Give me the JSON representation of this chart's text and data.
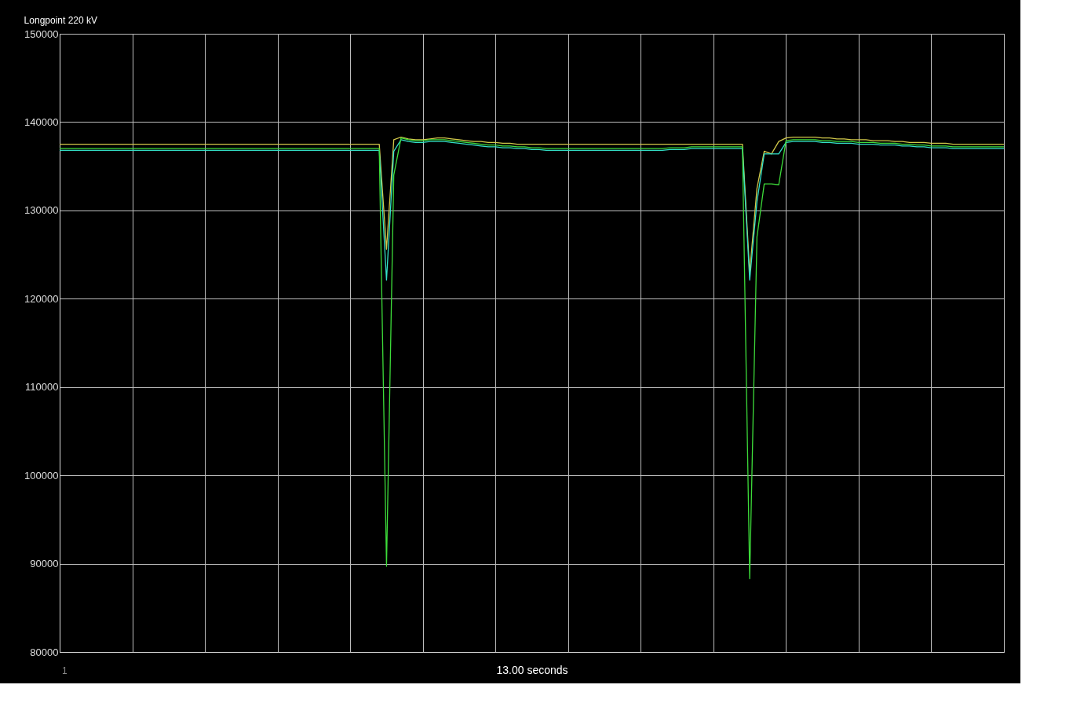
{
  "chart_data": {
    "type": "line",
    "title": "Longpoint 220 kV",
    "xlabel": "13.00 seconds",
    "annotations": [
      "1"
    ],
    "categories": [
      null,
      null,
      null,
      null,
      null,
      null,
      null,
      null,
      null,
      null,
      null,
      null,
      null,
      null,
      null,
      null,
      null,
      null,
      null,
      null,
      null,
      null,
      null,
      null,
      null,
      null,
      null,
      null,
      null,
      null,
      null,
      null,
      null,
      null,
      null,
      null,
      null,
      null,
      null,
      null,
      null,
      null,
      null,
      null,
      null,
      null,
      null,
      null,
      null,
      null,
      null,
      null,
      null,
      null,
      null,
      null,
      null,
      null,
      null,
      null,
      null,
      null,
      null,
      null,
      null,
      null,
      null,
      null,
      null,
      null,
      null,
      null,
      null,
      null,
      null,
      null,
      null,
      null,
      null,
      null,
      null,
      null,
      null,
      null,
      null,
      null,
      null,
      null,
      null,
      null,
      null,
      null,
      null,
      null,
      null,
      null,
      null,
      null,
      null,
      null,
      null,
      null,
      null,
      null,
      null,
      null,
      null,
      null,
      null,
      null,
      null,
      null,
      null,
      null,
      null,
      null,
      null,
      null,
      null,
      null,
      null,
      null,
      null,
      null,
      null,
      null,
      null,
      null,
      null,
      null,
      null
    ],
    "ylim": [
      80000,
      150000
    ],
    "yticks": [
      80000,
      90000,
      100000,
      110000,
      120000,
      130000,
      140000,
      150000
    ],
    "grid": true,
    "line_style": "solid",
    "series": [
      {
        "color": "#d2c94a",
        "values": [
          137500,
          137500,
          137500,
          137500,
          137500,
          137500,
          137500,
          137500,
          137500,
          137500,
          137500,
          137500,
          137500,
          137500,
          137500,
          137500,
          137500,
          137500,
          137500,
          137500,
          137500,
          137500,
          137500,
          137500,
          137500,
          137500,
          137500,
          137500,
          137500,
          137500,
          137500,
          137500,
          137500,
          137500,
          137500,
          137500,
          137500,
          137500,
          137500,
          137500,
          137500,
          137500,
          137500,
          137500,
          137500,
          125600,
          138000,
          138300,
          138100,
          138000,
          138000,
          138100,
          138200,
          138200,
          138100,
          138000,
          137900,
          137800,
          137800,
          137700,
          137700,
          137600,
          137600,
          137500,
          137500,
          137500,
          137500,
          137500,
          137500,
          137500,
          137500,
          137500,
          137500,
          137500,
          137500,
          137500,
          137500,
          137500,
          137500,
          137500,
          137500,
          137500,
          137500,
          137500,
          137500,
          137500,
          137500,
          137500,
          137500,
          137500,
          137500,
          137500,
          137500,
          137500,
          137500,
          123000,
          132500,
          136700,
          136400,
          137800,
          138200,
          138300,
          138300,
          138300,
          138300,
          138200,
          138200,
          138100,
          138100,
          138000,
          138000,
          138000,
          137900,
          137900,
          137900,
          137800,
          137800,
          137700,
          137700,
          137700,
          137600,
          137600,
          137600,
          137500,
          137500,
          137500,
          137500,
          137500,
          137500,
          137500,
          137500
        ]
      },
      {
        "color": "#33e0c8",
        "values": [
          136800,
          136800,
          136800,
          136800,
          136800,
          136800,
          136800,
          136800,
          136800,
          136800,
          136800,
          136800,
          136800,
          136800,
          136800,
          136800,
          136800,
          136800,
          136800,
          136800,
          136800,
          136800,
          136800,
          136800,
          136800,
          136800,
          136800,
          136800,
          136800,
          136800,
          136800,
          136800,
          136800,
          136800,
          136800,
          136800,
          136800,
          136800,
          136800,
          136800,
          136800,
          136800,
          136800,
          136800,
          136800,
          122100,
          136700,
          138000,
          137800,
          137700,
          137700,
          137800,
          137800,
          137800,
          137700,
          137600,
          137500,
          137400,
          137300,
          137200,
          137200,
          137100,
          137100,
          137000,
          137000,
          136900,
          136900,
          136800,
          136800,
          136800,
          136800,
          136800,
          136800,
          136800,
          136800,
          136800,
          136800,
          136800,
          136800,
          136800,
          136800,
          136800,
          136800,
          136800,
          136900,
          136900,
          136900,
          137000,
          137000,
          137000,
          137000,
          137000,
          137000,
          137000,
          137000,
          122100,
          131000,
          136400,
          136400,
          136400,
          137700,
          137800,
          137800,
          137800,
          137800,
          137700,
          137700,
          137600,
          137600,
          137600,
          137500,
          137500,
          137500,
          137400,
          137400,
          137400,
          137300,
          137300,
          137200,
          137200,
          137100,
          137100,
          137100,
          137000,
          137000,
          137000,
          137000,
          137000,
          137000,
          137000,
          137000
        ]
      },
      {
        "color": "#3ddc3a",
        "values": [
          137000,
          137000,
          137000,
          137000,
          137000,
          137000,
          137000,
          137000,
          137000,
          137000,
          137000,
          137000,
          137000,
          137000,
          137000,
          137000,
          137000,
          137000,
          137000,
          137000,
          137000,
          137000,
          137000,
          137000,
          137000,
          137000,
          137000,
          137000,
          137000,
          137000,
          137000,
          137000,
          137000,
          137000,
          137000,
          137000,
          137000,
          137000,
          137000,
          137000,
          137000,
          137000,
          137000,
          137000,
          137000,
          89700,
          134000,
          138200,
          138000,
          137900,
          137900,
          138000,
          138000,
          138000,
          137900,
          137800,
          137700,
          137600,
          137500,
          137400,
          137400,
          137300,
          137300,
          137200,
          137200,
          137100,
          137100,
          137000,
          137000,
          137000,
          137000,
          137000,
          137000,
          137000,
          137000,
          137000,
          137000,
          137000,
          137000,
          137000,
          137000,
          137000,
          137000,
          137000,
          137100,
          137100,
          137100,
          137200,
          137200,
          137200,
          137200,
          137200,
          137200,
          137200,
          137200,
          88300,
          127000,
          133000,
          133000,
          132900,
          137900,
          138000,
          138000,
          138000,
          138000,
          137900,
          137900,
          137800,
          137800,
          137800,
          137700,
          137700,
          137700,
          137600,
          137600,
          137600,
          137500,
          137500,
          137400,
          137400,
          137300,
          137300,
          137300,
          137200,
          137200,
          137200,
          137200,
          137200,
          137200,
          137200,
          137200
        ]
      }
    ]
  }
}
